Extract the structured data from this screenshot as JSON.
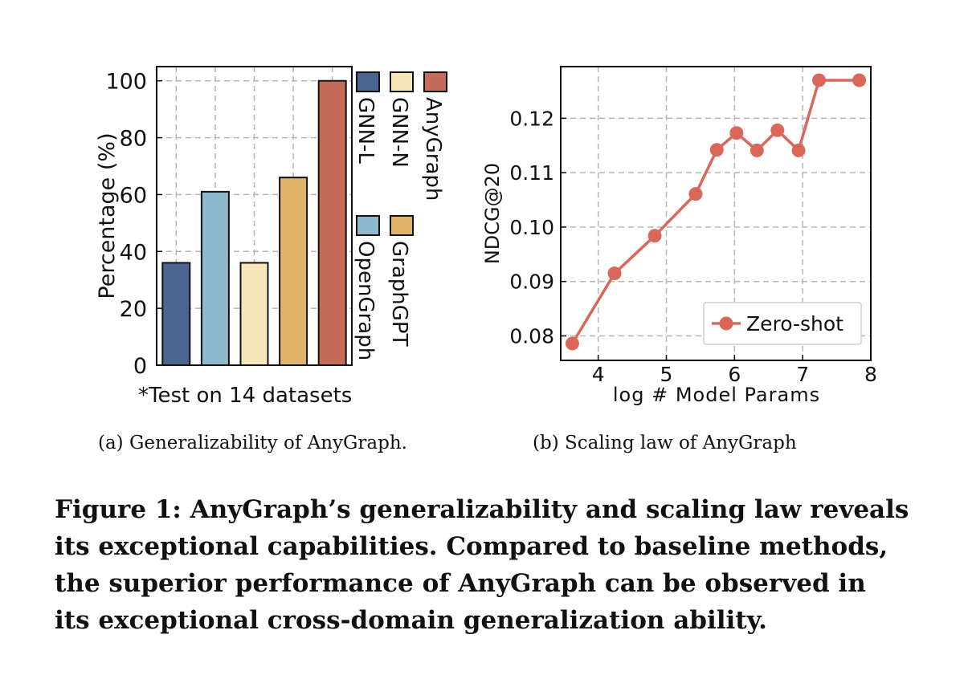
{
  "figure": {
    "caption": "Figure 1: AnyGraph’s generalizability and scaling law reveals its exceptional capabilities. Compared to baseline methods, the superior performance of AnyGraph can be observed in its exceptional cross-domain generalization ability.",
    "caption_lines": [
      "Figure 1: AnyGraph’s generalizability and scaling law reveals",
      "its exceptional capabilities. Compared to baseline methods,",
      "the superior performance of AnyGraph can be observed in",
      "its exceptional cross-domain generalization ability."
    ]
  },
  "chart_data": [
    {
      "type": "bar",
      "subcaption": "(a)  Generalizability of AnyGraph.",
      "note": "*Test on 14 datasets",
      "ylabel": "Percentage (%)",
      "ylim": [
        0,
        105
      ],
      "yticks": [
        "0",
        "20",
        "40",
        "60",
        "80",
        "100"
      ],
      "ytick_values": [
        0,
        20,
        40,
        60,
        80,
        100
      ],
      "grid": true,
      "categories": [
        "GNN-L",
        "OpenGraph",
        "GNN-N",
        "GraphGPT",
        "AnyGraph"
      ],
      "values": [
        36,
        61,
        36,
        66,
        100
      ],
      "colors": [
        "#4a6690",
        "#90b8cc",
        "#f8e6bb",
        "#e1b46b",
        "#c46b59"
      ],
      "legend": {
        "placement": "right",
        "entries": [
          {
            "label": "GNN-L",
            "color": "#4a6690"
          },
          {
            "label": "GNN-N",
            "color": "#f8e6bb"
          },
          {
            "label": "AnyGraph",
            "color": "#c46b59"
          },
          {
            "label": "OpenGraph",
            "color": "#90b8cc"
          },
          {
            "label": "GraphGPT",
            "color": "#e1b46b"
          }
        ]
      }
    },
    {
      "type": "line",
      "subcaption": "(b)  Scaling law of AnyGraph",
      "xlabel": "log # Model Params",
      "ylabel": "NDCG@20",
      "xlim": [
        3.45,
        8.0
      ],
      "ylim": [
        0.0755,
        0.1295
      ],
      "xticks": [
        "4",
        "5",
        "6",
        "7",
        "8"
      ],
      "xtick_values": [
        4,
        5,
        6,
        7,
        8
      ],
      "yticks": [
        "0.08",
        "0.09",
        "0.10",
        "0.11",
        "0.12"
      ],
      "ytick_values": [
        0.08,
        0.09,
        0.1,
        0.11,
        0.12
      ],
      "grid": true,
      "color": "#d9685a",
      "legend": {
        "placement": "bottom-right",
        "entries": [
          "Zero-shot"
        ]
      },
      "series": [
        {
          "name": "Zero-shot",
          "x": [
            3.62,
            4.24,
            4.83,
            5.43,
            5.74,
            6.03,
            6.33,
            6.63,
            6.94,
            7.24,
            7.83
          ],
          "y": [
            0.0786,
            0.0915,
            0.0984,
            0.1061,
            0.1142,
            0.1173,
            0.1141,
            0.1178,
            0.1141,
            0.127,
            0.127
          ]
        }
      ]
    }
  ]
}
